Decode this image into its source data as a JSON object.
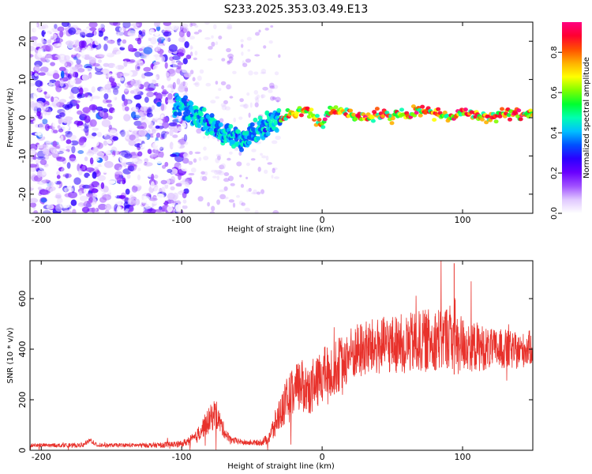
{
  "title": "S233.2025.353.03.49.E13",
  "chart_data": [
    {
      "type": "heatmap",
      "name": "spectrogram",
      "xlabel": "Height of straight line (km)",
      "ylabel": "Frequency (Hz)",
      "xlim": [
        -208,
        150
      ],
      "ylim": [
        -25,
        25
      ],
      "xticks": [
        -200,
        -100,
        0,
        100
      ],
      "yticks": [
        -20,
        -10,
        0,
        10,
        20
      ],
      "colorbar": {
        "label": "Normalized spectral amplitude",
        "range": [
          0.0,
          0.95
        ],
        "ticks": [
          "0.0",
          "0.2",
          "0.4",
          "0.6",
          "0.8"
        ],
        "colors": [
          "#ffffff",
          "#e0c8ff",
          "#a050ff",
          "#6a00ff",
          "#2b00ff",
          "#0050ff",
          "#00c0ff",
          "#00ffb0",
          "#00ff30",
          "#80ff00",
          "#ffff00",
          "#ffb000",
          "#ff5000",
          "#ff0030",
          "#ff0080"
        ]
      },
      "ridge": {
        "x": [
          -100,
          -90,
          -80,
          -70,
          -60,
          -50,
          -40,
          -30,
          -20,
          -10,
          -5,
          0,
          5,
          10,
          20,
          30,
          40,
          50,
          60,
          70,
          80,
          90,
          100,
          110,
          120,
          130,
          140,
          150
        ],
        "freq": [
          3,
          1,
          -2,
          -4,
          -6,
          -4,
          -2,
          0,
          1,
          2,
          0,
          -2,
          1,
          2,
          1,
          0,
          1,
          0,
          1,
          2,
          1,
          0,
          1,
          1,
          0,
          1,
          1,
          1
        ]
      }
    },
    {
      "type": "line",
      "name": "snr",
      "xlabel": "Height of straight line (km)",
      "ylabel": "SNR (10 * v/v)",
      "xlim": [
        -208,
        150
      ],
      "ylim": [
        0,
        750
      ],
      "xticks": [
        -200,
        -100,
        0,
        100
      ],
      "yticks": [
        0,
        200,
        400,
        600
      ],
      "series": [
        {
          "name": "SNR",
          "color": "#e8312b",
          "x": [
            -208,
            -190,
            -170,
            -165,
            -160,
            -140,
            -120,
            -100,
            -90,
            -85,
            -80,
            -76,
            -72,
            -68,
            -64,
            -55,
            -45,
            -40,
            -35,
            -30,
            -25,
            -20,
            -15,
            -10,
            -5,
            0,
            5,
            10,
            20,
            30,
            40,
            50,
            60,
            70,
            80,
            90,
            94,
            96,
            100,
            110,
            120,
            130,
            140,
            150
          ],
          "mean": [
            20,
            20,
            20,
            40,
            20,
            20,
            20,
            25,
            50,
            90,
            120,
            150,
            100,
            60,
            40,
            30,
            30,
            40,
            80,
            150,
            200,
            220,
            260,
            240,
            250,
            300,
            310,
            330,
            380,
            400,
            410,
            420,
            420,
            430,
            440,
            450,
            460,
            440,
            420,
            410,
            400,
            400,
            390,
            410
          ],
          "amp": [
            8,
            8,
            8,
            10,
            8,
            8,
            10,
            12,
            25,
            40,
            55,
            60,
            40,
            20,
            14,
            10,
            12,
            20,
            50,
            70,
            90,
            110,
            110,
            100,
            100,
            110,
            110,
            110,
            110,
            115,
            115,
            115,
            120,
            125,
            125,
            130,
            160,
            140,
            110,
            100,
            80,
            80,
            70,
            70
          ]
        }
      ]
    }
  ]
}
